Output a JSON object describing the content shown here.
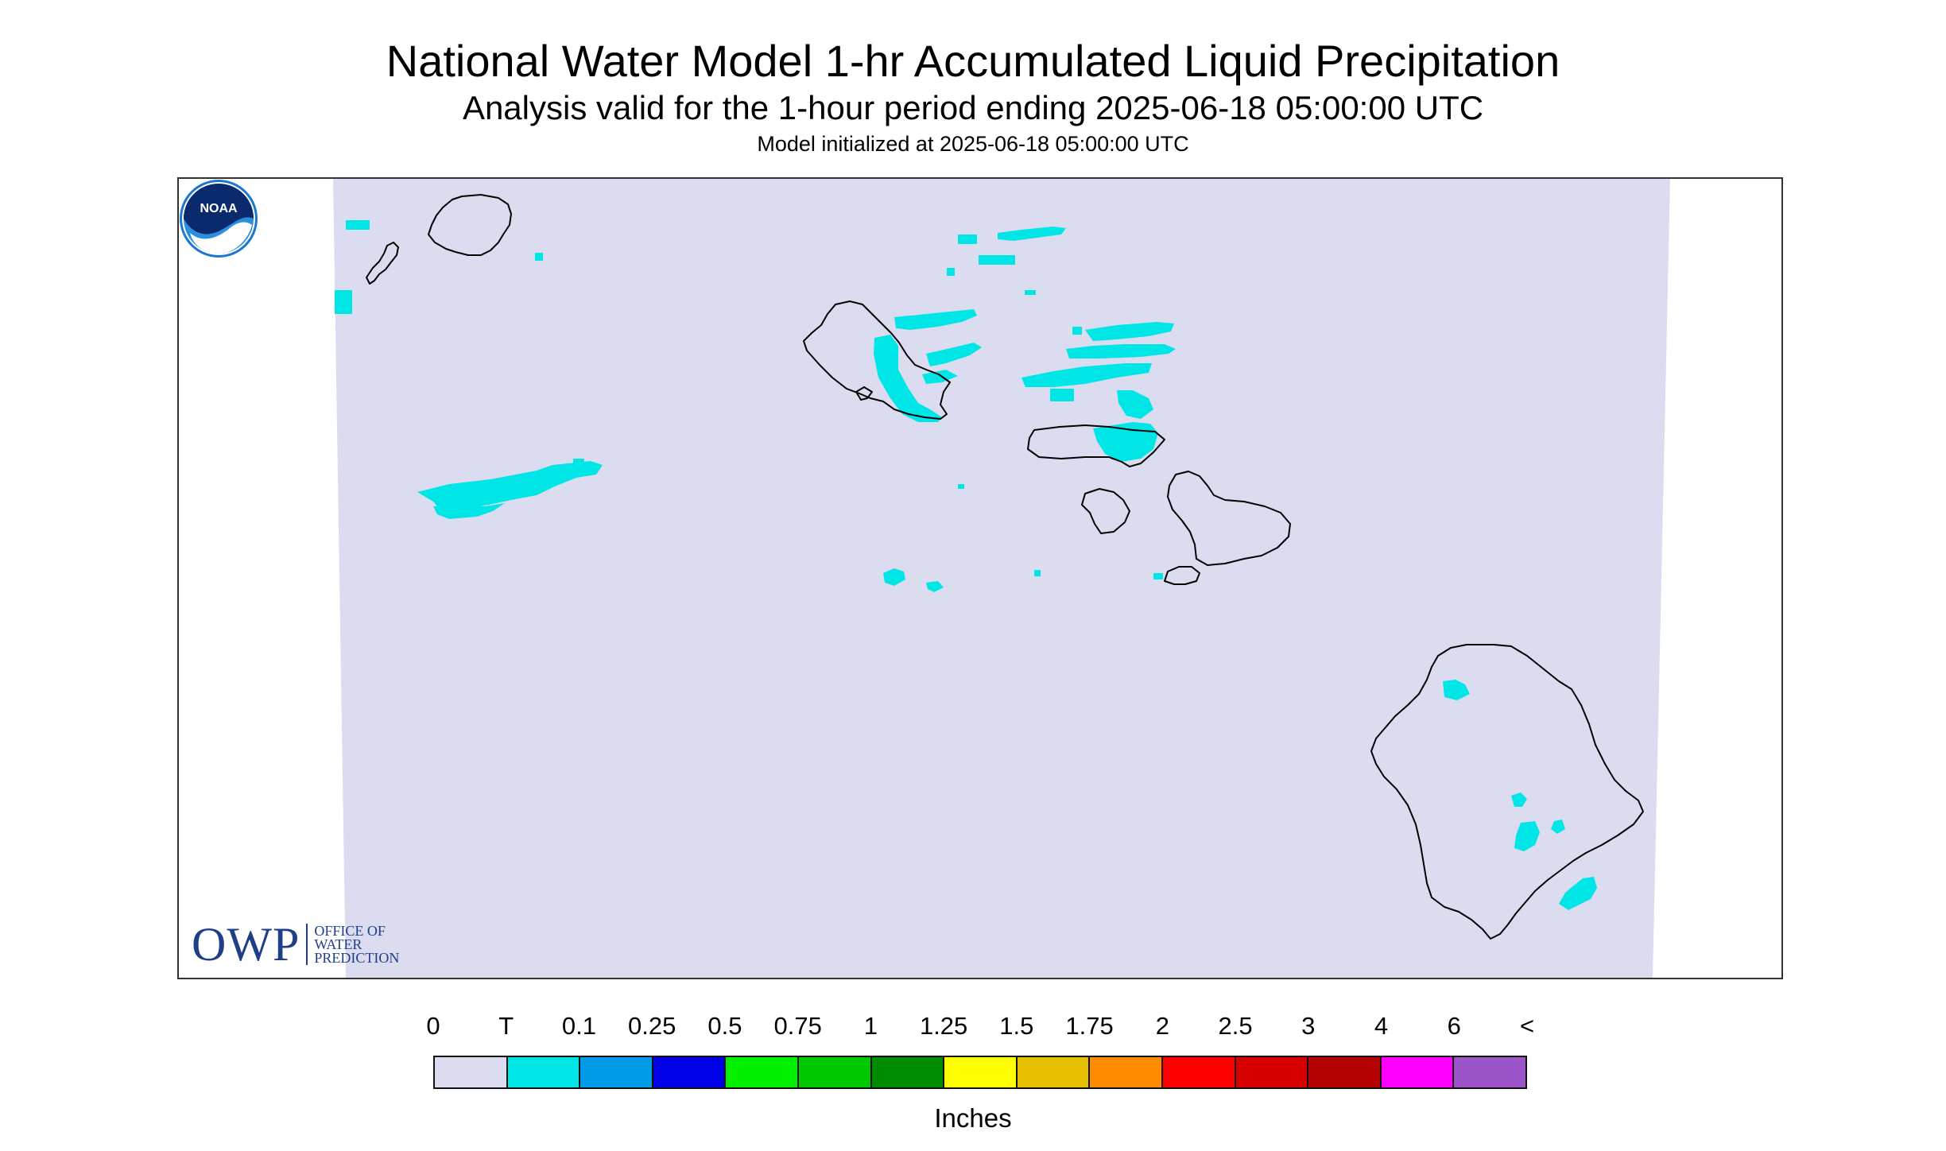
{
  "header": {
    "title": "National Water Model 1-hr Accumulated Liquid Precipitation",
    "subtitle": "Analysis valid for the 1-hour period ending 2025-06-18 05:00:00 UTC",
    "init": "Model initialized at 2025-06-18 05:00:00 UTC"
  },
  "logos": {
    "owp_main": "OWP",
    "owp_line1": "OFFICE OF",
    "owp_line2": "WATER",
    "owp_line3": "PREDICTION",
    "noaa": "NOAA"
  },
  "legend": {
    "ticks": [
      "0",
      "T",
      "0.1",
      "0.25",
      "0.5",
      "0.75",
      "1",
      "1.25",
      "1.5",
      "1.75",
      "2",
      "2.5",
      "3",
      "4",
      "6",
      "<"
    ],
    "colors": [
      "#dcdcf0",
      "#00e6e6",
      "#009ae6",
      "#0000e6",
      "#00f000",
      "#00c800",
      "#008c00",
      "#ffff00",
      "#e6c000",
      "#ff8c00",
      "#ff0000",
      "#d70000",
      "#b40000",
      "#ff00ff",
      "#9b55c8"
    ],
    "units": "Inches"
  },
  "map": {
    "background_color": "#dcdcf0",
    "precip_color": "#00e6e6",
    "coastline_color": "#000000",
    "islands": [
      "Niihau",
      "Kauai",
      "Oahu",
      "Molokai",
      "Lanai",
      "Maui",
      "Kahoolawe",
      "Hawaii"
    ]
  }
}
